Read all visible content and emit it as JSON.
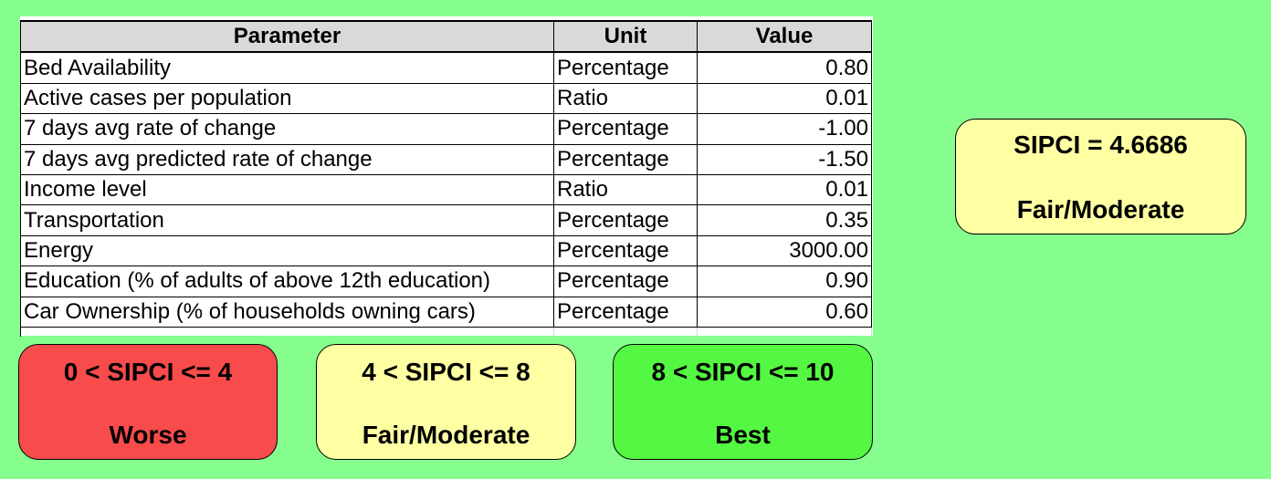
{
  "table": {
    "headers": [
      "Parameter",
      "Unit",
      "Value"
    ],
    "rows": [
      {
        "parameter": "Bed Availability",
        "unit": "Percentage",
        "value": "0.80"
      },
      {
        "parameter": "Active cases per population",
        "unit": "Ratio",
        "value": "0.01"
      },
      {
        "parameter": "7 days avg rate of change",
        "unit": "Percentage",
        "value": "-1.00"
      },
      {
        "parameter": "7 days avg predicted rate of change",
        "unit": "Percentage",
        "value": "-1.50"
      },
      {
        "parameter": "Income level",
        "unit": "Ratio",
        "value": "0.01"
      },
      {
        "parameter": "Transportation",
        "unit": "Percentage",
        "value": "0.35"
      },
      {
        "parameter": "Energy",
        "unit": "Percentage",
        "value": "3000.00"
      },
      {
        "parameter": "Education (% of adults of above 12th education)",
        "unit": "Percentage",
        "value": "0.90"
      },
      {
        "parameter": "Car Ownership (% of households owning cars)",
        "unit": "Percentage",
        "value": "0.60"
      }
    ]
  },
  "result": {
    "score_text": "SIPCI = 4.6686",
    "category": "Fair/Moderate",
    "color": "#fefea3"
  },
  "legend": [
    {
      "range": "0 < SIPCI <= 4",
      "label": "Worse",
      "color": "#f84b4b"
    },
    {
      "range": "4 < SIPCI <= 8",
      "label": "Fair/Moderate",
      "color": "#fefea3"
    },
    {
      "range": "8 < SIPCI <= 10",
      "label": "Best",
      "color": "#54f842"
    }
  ],
  "colors": {
    "background": "#86fe8e",
    "header_fill": "#d9d9d9"
  }
}
